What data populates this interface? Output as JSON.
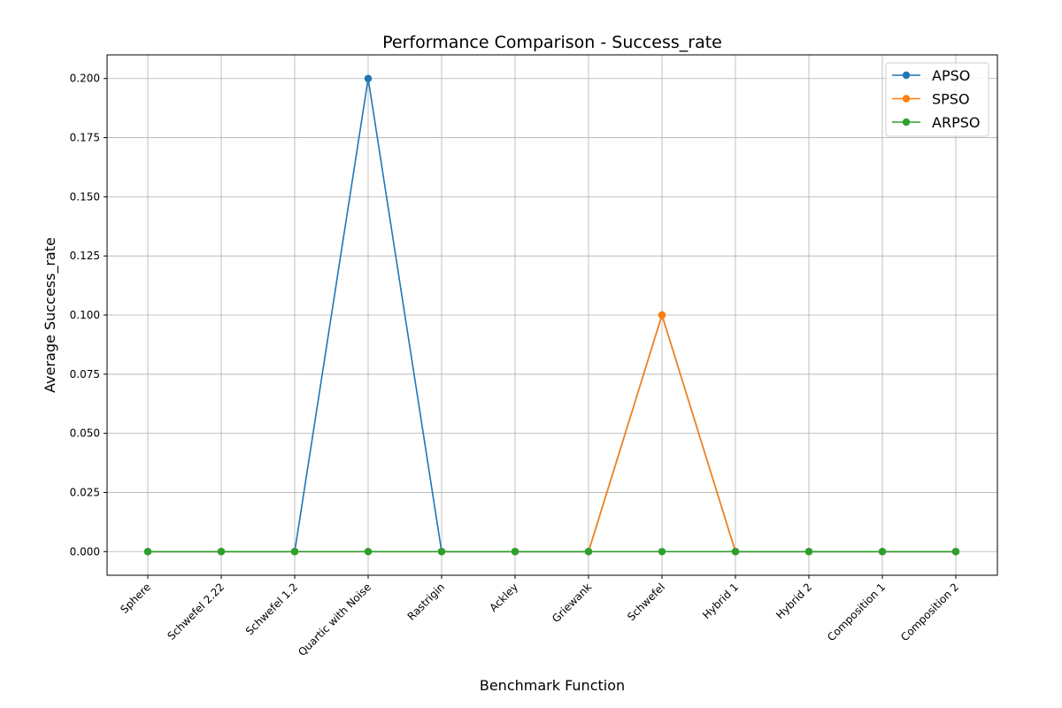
{
  "chart_data": {
    "type": "line",
    "title": "Performance Comparison - Success_rate",
    "xlabel": "Benchmark Function",
    "ylabel": "Average Success_rate",
    "categories": [
      "Sphere",
      "Schwefel 2.22",
      "Schwefel 1.2",
      "Quartic with Noise",
      "Rastrigin",
      "Ackley",
      "Griewank",
      "Schwefel",
      "Hybrid 1",
      "Hybrid 2",
      "Composition 1",
      "Composition 2"
    ],
    "ylim": [
      -0.01,
      0.21
    ],
    "yticks": [
      "0.000",
      "0.025",
      "0.050",
      "0.075",
      "0.100",
      "0.125",
      "0.150",
      "0.175",
      "0.200"
    ],
    "grid": true,
    "legend_position": "top-right",
    "series": [
      {
        "name": "APSO",
        "color": "#1f77b4",
        "values": [
          0,
          0,
          0,
          0.2,
          0,
          0,
          0,
          0.1,
          0,
          0,
          0,
          0
        ]
      },
      {
        "name": "SPSO",
        "color": "#ff7f0e",
        "values": [
          0,
          0,
          0,
          0,
          0,
          0,
          0,
          0.1,
          0,
          0,
          0,
          0
        ]
      },
      {
        "name": "ARPSO",
        "color": "#2ca02c",
        "values": [
          0,
          0,
          0,
          0,
          0,
          0,
          0,
          0,
          0,
          0,
          0,
          0
        ]
      }
    ]
  }
}
